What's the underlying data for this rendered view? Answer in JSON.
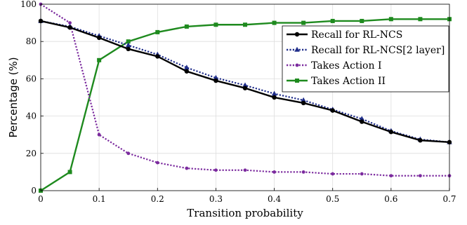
{
  "chart_data": {
    "type": "line",
    "xlabel": "Transition probability",
    "ylabel": "Percentage (%)",
    "xlim": [
      0,
      0.7
    ],
    "ylim": [
      0,
      100
    ],
    "xticks": [
      0,
      0.1,
      0.2,
      0.3,
      0.4,
      0.5,
      0.6,
      0.7
    ],
    "xtick_labels": [
      "0",
      "0.1",
      "0.2",
      "0.3",
      "0.4",
      "0.5",
      "0.6",
      "0.7"
    ],
    "yticks": [
      0,
      20,
      40,
      60,
      80,
      100
    ],
    "ytick_labels": [
      "0",
      "20",
      "40",
      "60",
      "80",
      "100"
    ],
    "grid": true,
    "legend_position": "top-right",
    "x": [
      0,
      0.05,
      0.1,
      0.15,
      0.2,
      0.25,
      0.3,
      0.35,
      0.4,
      0.45,
      0.5,
      0.55,
      0.6,
      0.65,
      0.7
    ],
    "series": [
      {
        "name": "Recall for RL-NCS",
        "color": "#000000",
        "line_style": "solid",
        "marker": "circle",
        "values": [
          91,
          87.5,
          82,
          76,
          72,
          64,
          59,
          55,
          50,
          47,
          43,
          37,
          31.5,
          27,
          26
        ]
      },
      {
        "name": "Recall for RL-NCS[2 layer]",
        "color": "#1f2d8a",
        "line_style": "dotted",
        "marker": "triangle",
        "values": [
          91,
          88,
          83,
          78,
          73,
          66,
          60.5,
          56.5,
          52,
          48.5,
          43.5,
          38.5,
          32,
          27.5,
          26
        ]
      },
      {
        "name": "Takes Action I",
        "color": "#7b2a9e",
        "line_style": "dotted",
        "marker": "dot",
        "values": [
          100,
          90,
          30,
          20,
          15,
          12,
          11,
          11,
          10,
          10,
          9,
          9,
          8,
          8,
          8
        ]
      },
      {
        "name": "Takes Action II",
        "color": "#1e8a1e",
        "line_style": "solid",
        "marker": "square",
        "values": [
          0,
          10,
          70,
          80,
          85,
          88,
          89,
          89,
          90,
          90,
          91,
          91,
          92,
          92,
          92
        ]
      }
    ]
  }
}
